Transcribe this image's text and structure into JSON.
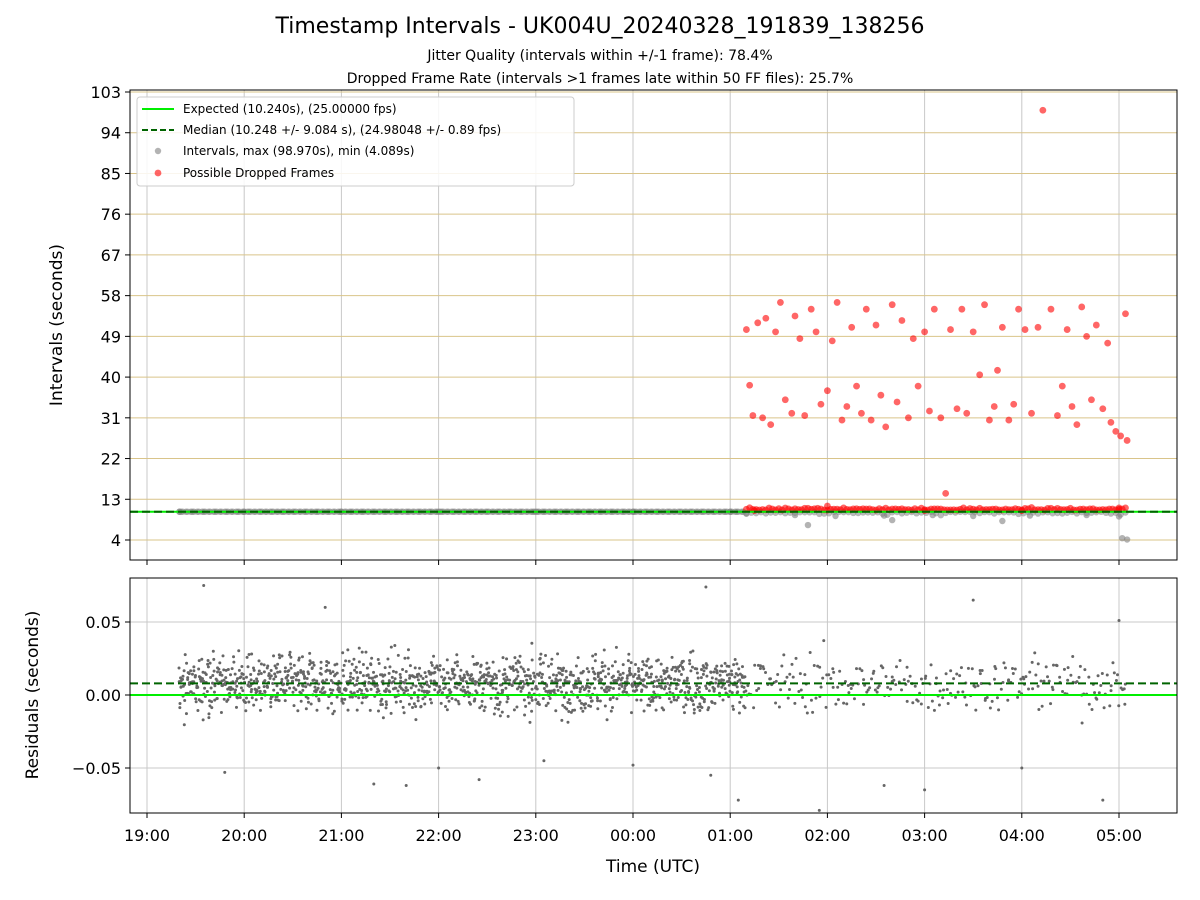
{
  "title": "Timestamp Intervals - UK004U_20240328_191839_138256",
  "subtitle_jitter": "Jitter Quality (intervals within +/-1 frame): 78.4%",
  "subtitle_dropped": "Dropped Frame Rate (intervals >1 frames late within 50 FF files): 25.7%",
  "chart_data": [
    {
      "type": "scatter",
      "panel": "top",
      "ylabel": "Intervals (seconds)",
      "xlabel": "",
      "xlim": [
        "19:00",
        "05:00"
      ],
      "ylim": [
        0,
        103
      ],
      "yticks": [
        4,
        13,
        22,
        31,
        40,
        49,
        58,
        67,
        76,
        85,
        94,
        103
      ],
      "grid": true,
      "legend_position": "upper-left",
      "legend": [
        "Expected (10.240s), (25.00000 fps)",
        "Median (10.248 +/- 9.084 s), (24.98048 +/- 0.89 fps)",
        "Intervals, max (98.970s), min (4.089s)",
        "Possible Dropped Frames"
      ],
      "colors": {
        "expected": "#00ee00",
        "median": "#006400",
        "intervals": "#808080",
        "dropped": "#ff0000",
        "hgrid": "#d9c48a"
      },
      "expected_value": 10.24,
      "median_value": 10.248,
      "series": [
        {
          "name": "Intervals, max (98.970s), min (4.089s)",
          "description": "dense band near 10.2 s from 19:20 to 05:05",
          "points": [
            [
              "19:20",
              10.24
            ],
            [
              "20:00",
              10.24
            ],
            [
              "21:00",
              10.24
            ],
            [
              "22:00",
              10.24
            ],
            [
              "23:00",
              10.24
            ],
            [
              "00:00",
              10.24
            ],
            [
              "01:00",
              10.24
            ],
            [
              "01:10",
              9.8
            ],
            [
              "01:40",
              9.5
            ],
            [
              "01:48",
              7.3
            ],
            [
              "02:05",
              9.3
            ],
            [
              "02:35",
              9.4
            ],
            [
              "02:40",
              8.4
            ],
            [
              "03:05",
              9.5
            ],
            [
              "03:30",
              9.3
            ],
            [
              "03:48",
              8.2
            ],
            [
              "04:05",
              9.4
            ],
            [
              "04:40",
              9.5
            ],
            [
              "05:00",
              9.2
            ],
            [
              "05:02",
              4.4
            ],
            [
              "05:05",
              4.1
            ]
          ]
        },
        {
          "name": "Possible Dropped Frames",
          "description": "red points 01:10-05:05 in bands near 10.5, 31-38 and 47-57 s",
          "points": [
            [
              "01:10",
              50.5
            ],
            [
              "01:12",
              38.2
            ],
            [
              "01:14",
              31.5
            ],
            [
              "01:17",
              52.0
            ],
            [
              "01:20",
              31.0
            ],
            [
              "01:22",
              53.0
            ],
            [
              "01:25",
              29.5
            ],
            [
              "01:28",
              50.0
            ],
            [
              "01:31",
              56.5
            ],
            [
              "01:34",
              35.0
            ],
            [
              "01:38",
              32.0
            ],
            [
              "01:40",
              53.5
            ],
            [
              "01:43",
              48.5
            ],
            [
              "01:46",
              31.5
            ],
            [
              "01:50",
              55.0
            ],
            [
              "01:53",
              50.0
            ],
            [
              "01:56",
              34.0
            ],
            [
              "02:00",
              37.0
            ],
            [
              "02:03",
              48.0
            ],
            [
              "02:06",
              56.5
            ],
            [
              "02:09",
              30.5
            ],
            [
              "02:12",
              33.5
            ],
            [
              "02:15",
              51.0
            ],
            [
              "02:18",
              38.0
            ],
            [
              "02:21",
              32.0
            ],
            [
              "02:24",
              55.0
            ],
            [
              "02:27",
              30.5
            ],
            [
              "02:30",
              51.5
            ],
            [
              "02:33",
              36.0
            ],
            [
              "02:36",
              29.0
            ],
            [
              "02:40",
              56.0
            ],
            [
              "02:43",
              34.5
            ],
            [
              "02:46",
              52.5
            ],
            [
              "02:50",
              31.0
            ],
            [
              "02:53",
              48.5
            ],
            [
              "02:56",
              38.0
            ],
            [
              "03:00",
              50.0
            ],
            [
              "03:03",
              32.5
            ],
            [
              "03:06",
              55.0
            ],
            [
              "03:10",
              31.0
            ],
            [
              "03:13",
              14.3
            ],
            [
              "03:16",
              50.5
            ],
            [
              "03:20",
              33.0
            ],
            [
              "03:23",
              55.0
            ],
            [
              "03:26",
              32.0
            ],
            [
              "03:30",
              50.0
            ],
            [
              "03:34",
              40.5
            ],
            [
              "03:37",
              56.0
            ],
            [
              "03:40",
              30.5
            ],
            [
              "03:43",
              33.5
            ],
            [
              "03:45",
              41.5
            ],
            [
              "03:48",
              51.0
            ],
            [
              "03:52",
              30.5
            ],
            [
              "03:55",
              34.0
            ],
            [
              "03:58",
              55.0
            ],
            [
              "04:02",
              50.5
            ],
            [
              "04:06",
              32.0
            ],
            [
              "04:10",
              51.0
            ],
            [
              "04:13",
              98.97
            ],
            [
              "04:18",
              55.0
            ],
            [
              "04:22",
              31.5
            ],
            [
              "04:25",
              38.0
            ],
            [
              "04:28",
              50.5
            ],
            [
              "04:31",
              33.5
            ],
            [
              "04:34",
              29.5
            ],
            [
              "04:37",
              55.5
            ],
            [
              "04:40",
              49.0
            ],
            [
              "04:43",
              35.0
            ],
            [
              "04:46",
              51.5
            ],
            [
              "04:50",
              33.0
            ],
            [
              "04:53",
              47.5
            ],
            [
              "04:55",
              30.0
            ],
            [
              "04:58",
              28.0
            ],
            [
              "05:01",
              27.0
            ],
            [
              "05:04",
              54.0
            ],
            [
              "05:05",
              26.0
            ],
            [
              "01:15",
              10.5
            ],
            [
              "02:00",
              11.5
            ],
            [
              "03:00",
              10.5
            ],
            [
              "04:00",
              10.5
            ],
            [
              "05:00",
              10.8
            ]
          ]
        }
      ]
    },
    {
      "type": "scatter",
      "panel": "bottom",
      "ylabel": "Residuals (seconds)",
      "xlabel": "Time (UTC)",
      "xticks": [
        "19:00",
        "20:00",
        "21:00",
        "22:00",
        "23:00",
        "00:00",
        "01:00",
        "02:00",
        "03:00",
        "04:00",
        "05:00"
      ],
      "ylim": [
        -0.08,
        0.08
      ],
      "yticks": [
        "−0.05",
        "0.00",
        "0.05"
      ],
      "ytick_values": [
        -0.05,
        0,
        0.05
      ],
      "grid": true,
      "colors": {
        "points": "#666666",
        "zero_line": "#00ee00",
        "median_line": "#006400"
      },
      "median_offset": 0.008,
      "series": [
        {
          "name": "residuals",
          "description": "dense scatter -0.05..0.06 from 19:20 to 01:10, sparser to 05:05",
          "points": [
            [
              "19:35",
              0.075
            ],
            [
              "19:48",
              -0.053
            ],
            [
              "20:50",
              0.06
            ],
            [
              "21:20",
              -0.061
            ],
            [
              "21:40",
              -0.062
            ],
            [
              "22:00",
              -0.05
            ],
            [
              "22:25",
              -0.058
            ],
            [
              "23:05",
              -0.045
            ],
            [
              "00:00",
              -0.048
            ],
            [
              "00:45",
              0.074
            ],
            [
              "00:48",
              -0.055
            ],
            [
              "01:05",
              -0.072
            ],
            [
              "01:55",
              -0.079
            ],
            [
              "02:35",
              -0.062
            ],
            [
              "03:00",
              -0.065
            ],
            [
              "03:30",
              0.065
            ],
            [
              "04:00",
              -0.05
            ],
            [
              "04:50",
              -0.072
            ],
            [
              "05:00",
              0.051
            ]
          ]
        }
      ]
    }
  ]
}
